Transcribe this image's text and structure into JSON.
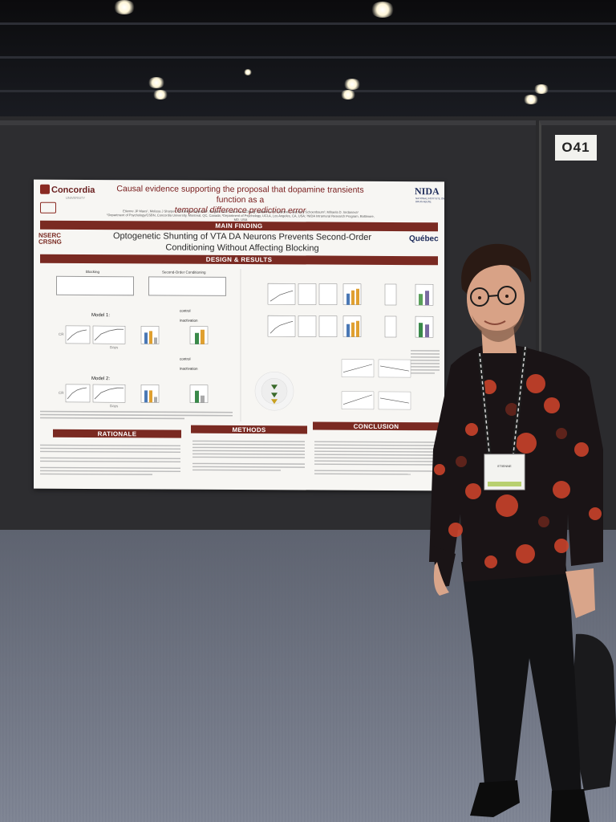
{
  "booth": {
    "number": "O41"
  },
  "poster": {
    "institution_logo": "Concordia",
    "institution_sub": "UNIVERSITY",
    "title_line1": "Causal evidence supporting the proposal that dopamine transients function as a",
    "title_line2": "temporal difference prediction error",
    "sponsor_logo": "NIDA",
    "sponsor_sub": "NATIONAL INSTITUTE ON DRUG ABUSE",
    "authors": "Etienne JP Maes¹, Melissa J Sharpe², Alexandra Usypchuk³, Megan Lozzi¹, Chun Yun Chang¹, Matthew P.H. Gardner³, Geoffrey Schoenbaum³, Mihaela D. Iordanova¹",
    "affiliations": "¹Department of Psychology/CSBN, Concordia University, Montreal, QC, Canada; ²Department of Psychology, UCLA, Los Angeles, CA, USA; ³NIDA Intramural Research Program, Baltimore, MD, USA",
    "main_finding_label": "MAIN FINDING",
    "headline_line1": "Optogenetic Shunting of VTA DA Neurons Prevents Second-Order",
    "headline_line2": "Conditioning Without Affecting Blocking",
    "nserc_line1": "NSERC",
    "nserc_line2": "CRSNG",
    "quebec_logo": "Québec",
    "design_results_label": "DESIGN & RESULTS",
    "blocking_label": "Blocking",
    "second_order_label": "Second-Order Conditioning",
    "model1_label": "Model 1:",
    "model2_label": "Model 2:",
    "days_label": "Days",
    "cr_label": "CR",
    "control_label": "control",
    "inactivation_label": "inactivation",
    "rationale_label": "RATIONALE",
    "methods_label": "METHODS",
    "conclusion_label": "CONCLUSION"
  },
  "badge": {
    "name": "ETIENNE"
  },
  "colors": {
    "banner": "#7a2a22",
    "shirt": "#1a1416",
    "flower": "#c9422a",
    "carpet": "#828897"
  }
}
